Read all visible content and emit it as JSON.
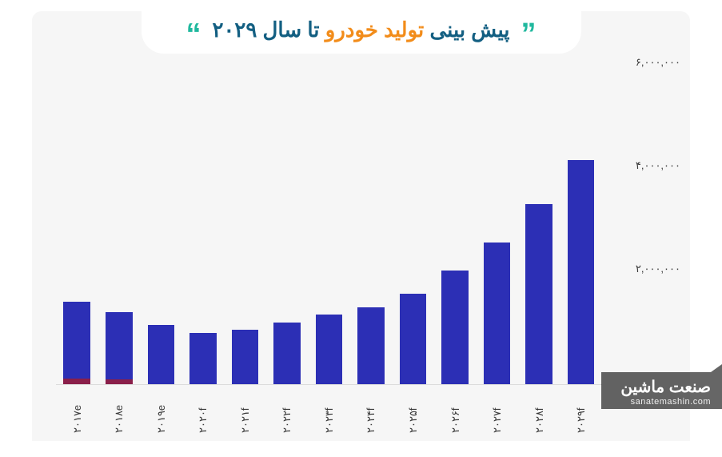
{
  "title": {
    "part1": "پیش بینی",
    "part2": "تولید خودرو",
    "part3": "تا سال ۲۰۲۹",
    "part1_color": "#135f82",
    "part2_color": "#f28c1a",
    "part3_color": "#135f82",
    "fontsize": 26,
    "quote_color": "#20b89e",
    "quote_open": "”",
    "quote_close": "“",
    "quote_fontsize": 38
  },
  "chart": {
    "type": "bar",
    "background_color": "#f6f6f6",
    "bar_color": "#2c2fb5",
    "base_color": "#8a1f4a",
    "ylim_max": 6000000,
    "y_ticks": [
      {
        "value": 2000000,
        "label": "۲,۰۰۰,۰۰۰"
      },
      {
        "value": 4000000,
        "label": "۴,۰۰۰,۰۰۰"
      },
      {
        "value": 6000000,
        "label": "۶,۰۰۰,۰۰۰"
      }
    ],
    "categories": [
      "۲۰۱۷e",
      "۲۰۱۸e",
      "۲۰۱۹e",
      "۲۰۲۰f",
      "۲۰۲۱f",
      "۲۰۲۲f",
      "۲۰۲۳f",
      "۲۰۲۴f",
      "۲۰۲۵f",
      "۲۰۲۶f",
      "۲۰۲۷f",
      "۲۰۲۸f",
      "۲۰۲۹f"
    ],
    "values": [
      1600000,
      1400000,
      1150000,
      1000000,
      1050000,
      1200000,
      1350000,
      1500000,
      1750000,
      2200000,
      2750000,
      3500000,
      4350000
    ],
    "base_values": [
      110000,
      90000,
      0,
      0,
      0,
      0,
      0,
      0,
      0,
      0,
      0,
      0,
      0
    ],
    "label_fontsize": 13,
    "label_color": "#3a3a3a"
  },
  "watermark": {
    "line1": "صنعت ماشین",
    "line2": "sanatemashin.com",
    "bg_color": "rgba(0,0,0,0.6)",
    "text_color": "#ffffff"
  }
}
